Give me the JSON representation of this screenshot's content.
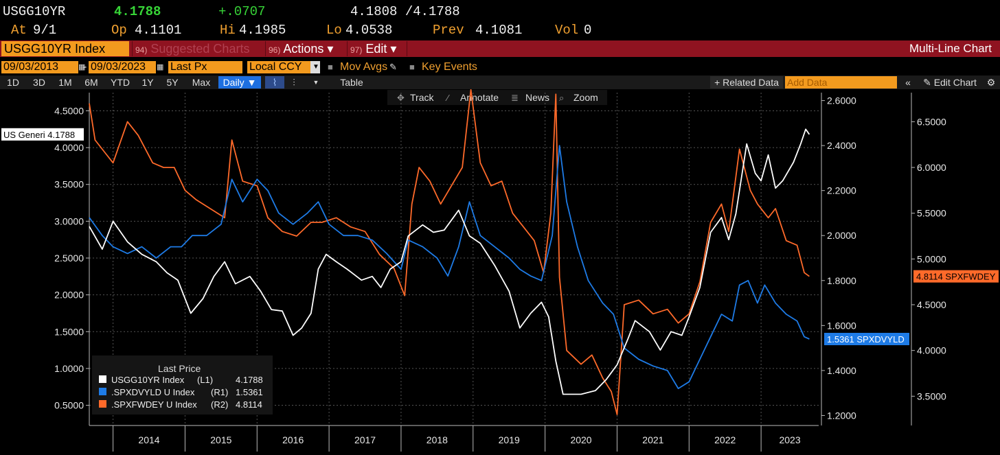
{
  "quote": {
    "ticker": "USGG10YR",
    "last": "4.1788",
    "change": "+.0707",
    "bid_ask": "4.1808 /4.1788",
    "at_label": "At",
    "at_value": "9/1",
    "open_label": "Op",
    "open_value": "4.1101",
    "high_label": "Hi",
    "high_value": "4.1985",
    "low_label": "Lo",
    "low_value": "4.0538",
    "prev_label": "Prev",
    "prev_value": "4.1081",
    "vol_label": "Vol",
    "vol_value": "0"
  },
  "menubar": {
    "security": "USGG10YR Index",
    "suggested_num": "94)",
    "suggested_label": "Suggested Charts",
    "actions_num": "96)",
    "actions_label": "Actions ▾",
    "edit_num": "97)",
    "edit_label": "Edit ▾",
    "chart_type": "Multi-Line Chart"
  },
  "settings": {
    "start_date": "09/03/2013",
    "end_date": "09/03/2023",
    "dash": "-",
    "field": "Last Px",
    "currency": "Local CCY",
    "mov_avgs": "Mov Avgs",
    "key_events": "Key Events"
  },
  "toolbar": {
    "periods": [
      "1D",
      "3D",
      "1M",
      "6M",
      "YTD",
      "1Y",
      "5Y",
      "Max"
    ],
    "frequency": "Daily ▼",
    "table": "Table",
    "related_data": "+ Related Data",
    "add_data_placeholder": "Add Data",
    "edit_chart": "Edit Chart"
  },
  "chart_tools": [
    "Track",
    "Annotate",
    "News",
    "Zoom"
  ],
  "colors": {
    "series_10yr": "#ffffff",
    "series_div": "#1e7be6",
    "series_fwd": "#ff6a2a",
    "accent_orange": "#f39a1e",
    "menu_red": "#8f1320"
  },
  "chart_data": {
    "type": "line",
    "x_axis_labels": [
      "2014",
      "2015",
      "2016",
      "2017",
      "2018",
      "2019",
      "2020",
      "2021",
      "2022",
      "2023"
    ],
    "axes": {
      "left": {
        "ticks": [
          "0.5000",
          "1.0000",
          "1.5000",
          "2.0000",
          "2.5000",
          "3.0000",
          "3.5000",
          "4.0000",
          "4.5000"
        ],
        "range": [
          0.3,
          4.7
        ]
      },
      "right1": {
        "ticks": [
          "1.2000",
          "1.4000",
          "1.6000",
          "1.8000",
          "2.0000",
          "2.2000",
          "2.4000",
          "2.6000"
        ],
        "range": [
          1.18,
          2.62
        ]
      },
      "right2": {
        "ticks": [
          "3.5000",
          "4.0000",
          "4.5000",
          "5.0000",
          "5.5000",
          "6.0000",
          "6.5000"
        ],
        "range": [
          3.24,
          6.78
        ]
      }
    },
    "series": [
      {
        "name": "USGG10YR Index",
        "axis": "left",
        "axis_tag": "(L1)",
        "last": "4.1788",
        "tag": "US Generi 4.1788",
        "points": [
          [
            2013.67,
            2.93
          ],
          [
            2013.85,
            2.62
          ],
          [
            2014.0,
            3.0
          ],
          [
            2014.2,
            2.72
          ],
          [
            2014.4,
            2.55
          ],
          [
            2014.6,
            2.45
          ],
          [
            2014.75,
            2.3
          ],
          [
            2014.9,
            2.2
          ],
          [
            2015.08,
            1.75
          ],
          [
            2015.25,
            1.95
          ],
          [
            2015.4,
            2.25
          ],
          [
            2015.55,
            2.45
          ],
          [
            2015.7,
            2.15
          ],
          [
            2015.9,
            2.25
          ],
          [
            2016.05,
            2.05
          ],
          [
            2016.2,
            1.8
          ],
          [
            2016.35,
            1.78
          ],
          [
            2016.5,
            1.45
          ],
          [
            2016.62,
            1.55
          ],
          [
            2016.75,
            1.75
          ],
          [
            2016.85,
            2.35
          ],
          [
            2016.96,
            2.55
          ],
          [
            2017.1,
            2.45
          ],
          [
            2017.25,
            2.35
          ],
          [
            2017.45,
            2.2
          ],
          [
            2017.6,
            2.25
          ],
          [
            2017.72,
            2.1
          ],
          [
            2017.85,
            2.35
          ],
          [
            2018.0,
            2.45
          ],
          [
            2018.1,
            2.8
          ],
          [
            2018.3,
            2.95
          ],
          [
            2018.45,
            2.85
          ],
          [
            2018.6,
            2.88
          ],
          [
            2018.8,
            3.15
          ],
          [
            2018.95,
            2.8
          ],
          [
            2019.1,
            2.7
          ],
          [
            2019.3,
            2.4
          ],
          [
            2019.5,
            2.05
          ],
          [
            2019.65,
            1.55
          ],
          [
            2019.8,
            1.75
          ],
          [
            2019.95,
            1.9
          ],
          [
            2020.05,
            1.7
          ],
          [
            2020.15,
            1.1
          ],
          [
            2020.25,
            0.65
          ],
          [
            2020.5,
            0.65
          ],
          [
            2020.7,
            0.7
          ],
          [
            2020.85,
            0.85
          ],
          [
            2021.0,
            1.05
          ],
          [
            2021.15,
            1.4
          ],
          [
            2021.25,
            1.65
          ],
          [
            2021.45,
            1.5
          ],
          [
            2021.6,
            1.25
          ],
          [
            2021.75,
            1.5
          ],
          [
            2021.9,
            1.45
          ],
          [
            2022.0,
            1.7
          ],
          [
            2022.15,
            2.1
          ],
          [
            2022.3,
            2.85
          ],
          [
            2022.45,
            3.05
          ],
          [
            2022.55,
            2.75
          ],
          [
            2022.65,
            3.1
          ],
          [
            2022.8,
            4.05
          ],
          [
            2022.92,
            3.65
          ],
          [
            2023.0,
            3.55
          ],
          [
            2023.1,
            3.9
          ],
          [
            2023.2,
            3.45
          ],
          [
            2023.3,
            3.55
          ],
          [
            2023.45,
            3.8
          ],
          [
            2023.55,
            4.05
          ],
          [
            2023.62,
            4.25
          ],
          [
            2023.67,
            4.18
          ]
        ]
      },
      {
        "name": ".SPXDVYLD U Index",
        "axis": "right1",
        "axis_tag": "(R1)",
        "last": "1.5361",
        "tag": "1.5361 SPXDVYLD",
        "points": [
          [
            2013.67,
            2.08
          ],
          [
            2013.85,
            2.0
          ],
          [
            2014.0,
            1.95
          ],
          [
            2014.2,
            1.92
          ],
          [
            2014.4,
            1.95
          ],
          [
            2014.6,
            1.9
          ],
          [
            2014.8,
            1.95
          ],
          [
            2014.95,
            1.95
          ],
          [
            2015.1,
            2.0
          ],
          [
            2015.3,
            2.0
          ],
          [
            2015.5,
            2.05
          ],
          [
            2015.65,
            2.25
          ],
          [
            2015.8,
            2.15
          ],
          [
            2016.0,
            2.25
          ],
          [
            2016.15,
            2.2
          ],
          [
            2016.3,
            2.1
          ],
          [
            2016.5,
            2.05
          ],
          [
            2016.7,
            2.1
          ],
          [
            2016.85,
            2.15
          ],
          [
            2017.0,
            2.05
          ],
          [
            2017.2,
            2.0
          ],
          [
            2017.4,
            2.0
          ],
          [
            2017.6,
            1.98
          ],
          [
            2017.8,
            1.92
          ],
          [
            2018.0,
            1.85
          ],
          [
            2018.1,
            1.98
          ],
          [
            2018.3,
            1.95
          ],
          [
            2018.5,
            1.9
          ],
          [
            2018.65,
            1.82
          ],
          [
            2018.8,
            1.95
          ],
          [
            2018.95,
            2.15
          ],
          [
            2019.1,
            2.0
          ],
          [
            2019.3,
            1.95
          ],
          [
            2019.5,
            1.9
          ],
          [
            2019.65,
            1.85
          ],
          [
            2019.8,
            1.82
          ],
          [
            2019.95,
            1.8
          ],
          [
            2020.1,
            2.0
          ],
          [
            2020.2,
            2.4
          ],
          [
            2020.3,
            2.15
          ],
          [
            2020.45,
            1.95
          ],
          [
            2020.6,
            1.8
          ],
          [
            2020.8,
            1.7
          ],
          [
            2020.95,
            1.65
          ],
          [
            2021.1,
            1.5
          ],
          [
            2021.3,
            1.45
          ],
          [
            2021.5,
            1.42
          ],
          [
            2021.7,
            1.4
          ],
          [
            2021.85,
            1.32
          ],
          [
            2022.0,
            1.35
          ],
          [
            2022.15,
            1.45
          ],
          [
            2022.3,
            1.55
          ],
          [
            2022.45,
            1.65
          ],
          [
            2022.6,
            1.62
          ],
          [
            2022.7,
            1.78
          ],
          [
            2022.82,
            1.8
          ],
          [
            2022.95,
            1.7
          ],
          [
            2023.05,
            1.78
          ],
          [
            2023.2,
            1.7
          ],
          [
            2023.35,
            1.65
          ],
          [
            2023.5,
            1.62
          ],
          [
            2023.6,
            1.55
          ],
          [
            2023.67,
            1.54
          ]
        ]
      },
      {
        "name": ".SPXFWDEY U Index",
        "axis": "right2",
        "axis_tag": "(R2)",
        "last": "4.8114",
        "tag": "4.8114 SPXFWDEY",
        "points": [
          [
            2013.67,
            6.7
          ],
          [
            2013.75,
            6.3
          ],
          [
            2013.9,
            6.15
          ],
          [
            2014.0,
            6.05
          ],
          [
            2014.2,
            6.5
          ],
          [
            2014.35,
            6.35
          ],
          [
            2014.55,
            6.05
          ],
          [
            2014.7,
            6.0
          ],
          [
            2014.85,
            6.0
          ],
          [
            2015.0,
            5.75
          ],
          [
            2015.15,
            5.65
          ],
          [
            2015.35,
            5.55
          ],
          [
            2015.55,
            5.45
          ],
          [
            2015.65,
            6.3
          ],
          [
            2015.8,
            5.85
          ],
          [
            2016.0,
            5.8
          ],
          [
            2016.15,
            5.45
          ],
          [
            2016.35,
            5.3
          ],
          [
            2016.55,
            5.25
          ],
          [
            2016.75,
            5.4
          ],
          [
            2016.9,
            5.4
          ],
          [
            2017.1,
            5.45
          ],
          [
            2017.3,
            5.35
          ],
          [
            2017.5,
            5.3
          ],
          [
            2017.7,
            5.05
          ],
          [
            2017.9,
            4.9
          ],
          [
            2018.05,
            4.6
          ],
          [
            2018.15,
            5.6
          ],
          [
            2018.25,
            6.0
          ],
          [
            2018.4,
            5.85
          ],
          [
            2018.55,
            5.6
          ],
          [
            2018.7,
            5.8
          ],
          [
            2018.85,
            6.0
          ],
          [
            2018.97,
            6.85
          ],
          [
            2019.1,
            6.05
          ],
          [
            2019.25,
            5.8
          ],
          [
            2019.4,
            5.85
          ],
          [
            2019.55,
            5.5
          ],
          [
            2019.7,
            5.35
          ],
          [
            2019.85,
            5.2
          ],
          [
            2019.98,
            4.85
          ],
          [
            2020.08,
            5.5
          ],
          [
            2020.15,
            6.8
          ],
          [
            2020.2,
            4.8
          ],
          [
            2020.3,
            4.0
          ],
          [
            2020.5,
            3.85
          ],
          [
            2020.65,
            3.95
          ],
          [
            2020.8,
            3.7
          ],
          [
            2020.92,
            3.55
          ],
          [
            2021.0,
            3.3
          ],
          [
            2021.1,
            4.5
          ],
          [
            2021.3,
            4.55
          ],
          [
            2021.5,
            4.4
          ],
          [
            2021.7,
            4.45
          ],
          [
            2021.85,
            4.3
          ],
          [
            2022.0,
            4.4
          ],
          [
            2022.15,
            4.75
          ],
          [
            2022.3,
            5.4
          ],
          [
            2022.45,
            5.6
          ],
          [
            2022.55,
            5.3
          ],
          [
            2022.7,
            6.2
          ],
          [
            2022.85,
            5.75
          ],
          [
            2022.95,
            5.6
          ],
          [
            2023.1,
            5.45
          ],
          [
            2023.2,
            5.55
          ],
          [
            2023.35,
            5.2
          ],
          [
            2023.5,
            5.15
          ],
          [
            2023.6,
            4.85
          ],
          [
            2023.67,
            4.81
          ]
        ]
      }
    ],
    "legend": {
      "title": "Last Price",
      "placement": "bottom-left"
    }
  }
}
